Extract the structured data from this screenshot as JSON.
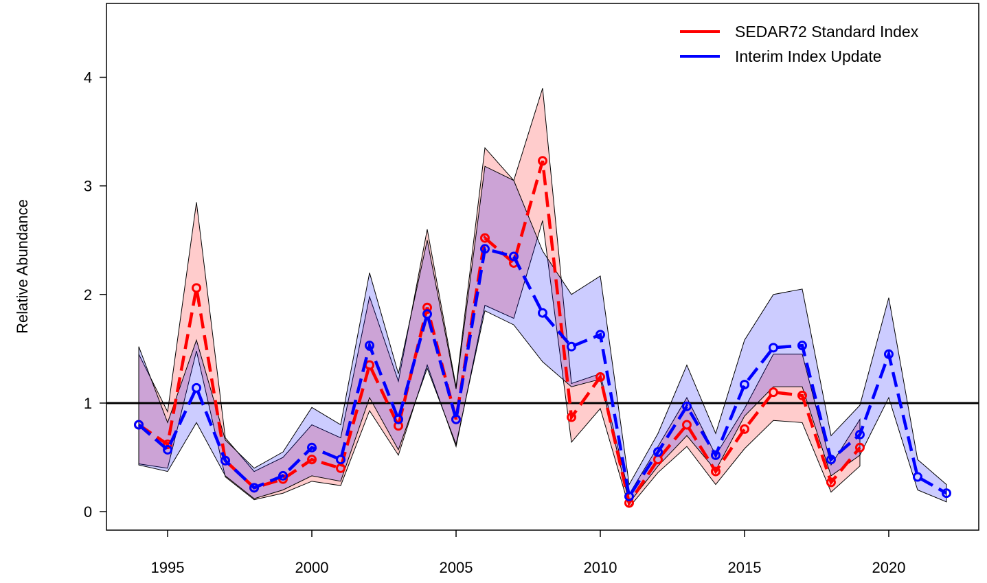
{
  "chart_data": {
    "type": "line",
    "y_label": "Relative Abundance",
    "xlim": [
      1992.88,
      2023.12
    ],
    "xticks": [
      1995,
      2000,
      2005,
      2010,
      2015,
      2020
    ],
    "ylim": [
      -0.17,
      4.68
    ],
    "yticks": [
      0,
      1,
      2,
      3,
      4
    ],
    "hline": 1,
    "legend": "top-right",
    "series": [
      {
        "name": "SEDAR72 Standard Index",
        "color": "#ff0000",
        "band_color": "rgba(255,0,0,0.2)",
        "x": [
          1994,
          1995,
          1996,
          1997,
          1998,
          1999,
          2000,
          2001,
          2002,
          2003,
          2004,
          2005,
          2006,
          2007,
          2008,
          2009,
          2010,
          2011,
          2012,
          2013,
          2014,
          2015,
          2016,
          2017,
          2018,
          2019
        ],
        "values": [
          0.8,
          0.62,
          2.06,
          0.47,
          0.22,
          0.3,
          0.48,
          0.4,
          1.35,
          0.79,
          1.88,
          0.85,
          2.52,
          2.29,
          3.23,
          0.87,
          1.24,
          0.08,
          0.48,
          0.8,
          0.37,
          0.76,
          1.1,
          1.07,
          0.27,
          0.59
        ],
        "lower": [
          0.44,
          0.4,
          1.48,
          0.32,
          0.11,
          0.17,
          0.28,
          0.24,
          0.93,
          0.52,
          1.35,
          0.6,
          1.9,
          1.78,
          2.68,
          0.64,
          0.95,
          0.04,
          0.36,
          0.6,
          0.25,
          0.58,
          0.84,
          0.82,
          0.18,
          0.42
        ],
        "upper": [
          1.45,
          0.92,
          2.85,
          0.68,
          0.37,
          0.5,
          0.8,
          0.68,
          1.98,
          1.2,
          2.6,
          1.15,
          3.35,
          3.05,
          3.9,
          1.18,
          1.27,
          0.16,
          0.6,
          1.05,
          0.52,
          0.95,
          1.45,
          1.45,
          0.43,
          0.85
        ]
      },
      {
        "name": "Interim Index Update",
        "color": "#0000ff",
        "band_color": "rgba(0,0,255,0.2)",
        "x": [
          1994,
          1995,
          1996,
          1997,
          1998,
          1999,
          2000,
          2001,
          2002,
          2003,
          2004,
          2005,
          2006,
          2007,
          2008,
          2009,
          2010,
          2011,
          2012,
          2013,
          2014,
          2015,
          2016,
          2017,
          2018,
          2019,
          2020,
          2021,
          2022
        ],
        "values": [
          0.8,
          0.57,
          1.14,
          0.47,
          0.22,
          0.33,
          0.59,
          0.48,
          1.53,
          0.85,
          1.82,
          0.85,
          2.42,
          2.35,
          1.83,
          1.52,
          1.63,
          0.14,
          0.55,
          0.97,
          0.52,
          1.17,
          1.51,
          1.53,
          0.48,
          0.71,
          1.45,
          0.32,
          0.17
        ],
        "lower": [
          0.43,
          0.37,
          0.82,
          0.33,
          0.12,
          0.2,
          0.33,
          0.28,
          1.05,
          0.57,
          1.32,
          0.62,
          1.85,
          1.72,
          1.38,
          1.15,
          1.22,
          0.08,
          0.42,
          0.7,
          0.38,
          0.88,
          1.15,
          1.15,
          0.33,
          0.52,
          1.05,
          0.2,
          0.09
        ],
        "upper": [
          1.52,
          0.82,
          1.58,
          0.66,
          0.4,
          0.55,
          0.96,
          0.8,
          2.2,
          1.27,
          2.5,
          1.13,
          3.18,
          3.05,
          2.4,
          2.0,
          2.17,
          0.25,
          0.72,
          1.35,
          0.72,
          1.58,
          2.0,
          2.05,
          0.7,
          0.98,
          1.97,
          0.48,
          0.25
        ]
      }
    ]
  }
}
